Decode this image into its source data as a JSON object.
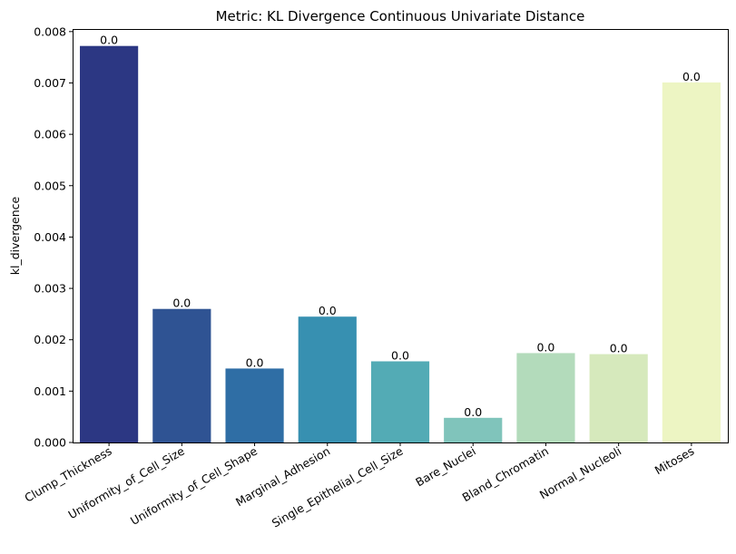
{
  "chart_data": {
    "type": "bar",
    "title": "Metric: KL Divergence Continuous Univariate Distance",
    "xlabel": "",
    "ylabel": "kl_divergence",
    "ylim": [
      0,
      0.00805
    ],
    "yticks": [
      "0.000",
      "0.001",
      "0.002",
      "0.003",
      "0.004",
      "0.005",
      "0.006",
      "0.007",
      "0.008"
    ],
    "ytick_values": [
      0,
      0.001,
      0.002,
      0.003,
      0.004,
      0.005,
      0.006,
      0.007,
      0.008
    ],
    "categories": [
      "Clump_Thickness",
      "Uniformity_of_Cell_Size",
      "Uniformity_of_Cell_Shape",
      "Marginal_Adhesion",
      "Single_Epithelial_Cell_Size",
      "Bare_Nuclei",
      "Bland_Chromatin",
      "Normal_Nucleoli",
      "Mitoses"
    ],
    "values": [
      0.00772,
      0.0026,
      0.00144,
      0.00245,
      0.00158,
      0.00048,
      0.00174,
      0.00172,
      0.00701
    ],
    "data_labels": [
      "0.0",
      "0.0",
      "0.0",
      "0.0",
      "0.0",
      "0.0",
      "0.0",
      "0.0",
      "0.0"
    ],
    "colors": [
      "#2c3783",
      "#2f5393",
      "#2f6ea5",
      "#3790b1",
      "#53abb5",
      "#80c4bb",
      "#b3dbbb",
      "#d6e9bc",
      "#edf5c3"
    ],
    "grid": false,
    "legend": "none"
  }
}
